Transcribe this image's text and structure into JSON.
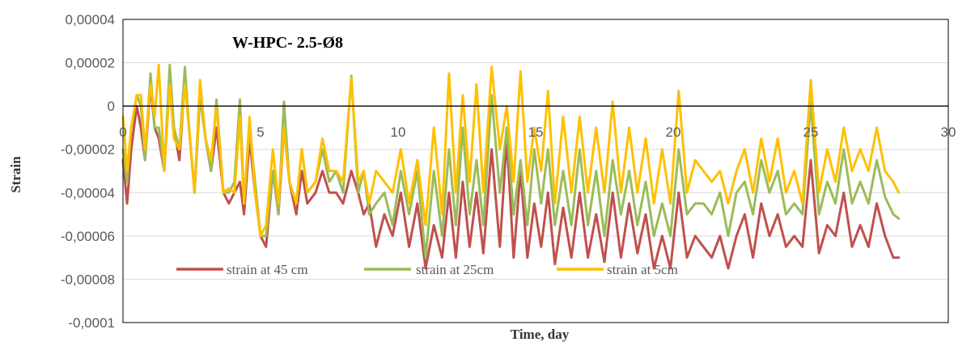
{
  "chart_data": {
    "type": "line",
    "title": "W-HPC- 2.5-Ø8",
    "xlabel": "Time, day",
    "ylabel": "Strain",
    "xlim": [
      0,
      30
    ],
    "ylim": [
      -0.0001,
      4e-05
    ],
    "x_ticks": [
      0,
      5,
      10,
      15,
      20,
      25,
      30
    ],
    "x_tick_labels": [
      "0",
      "5",
      "10",
      "15",
      "20",
      "25",
      "30"
    ],
    "y_ticks": [
      4e-05,
      2e-05,
      0,
      -2e-05,
      -4e-05,
      -6e-05,
      -8e-05,
      -0.0001
    ],
    "y_tick_labels": [
      "0,00004",
      "0,00002",
      "0",
      "-0,00002",
      "-0,00004",
      "-0,00006",
      "-0,00008",
      "-0,0001"
    ],
    "grid": "horizontal",
    "legend": "bottom",
    "series": [
      {
        "name": "strain at 45 cm",
        "color": "#C0504D",
        "x": [
          0,
          0.15,
          0.3,
          0.5,
          0.65,
          0.8,
          1.0,
          1.15,
          1.3,
          1.5,
          1.7,
          1.85,
          2.05,
          2.25,
          2.4,
          2.6,
          2.8,
          3.0,
          3.2,
          3.4,
          3.65,
          3.85,
          4.05,
          4.25,
          4.4,
          4.6,
          4.8,
          5.0,
          5.2,
          5.45,
          5.65,
          5.85,
          6.05,
          6.3,
          6.5,
          6.7,
          7.0,
          7.25,
          7.5,
          7.75,
          8.0,
          8.3,
          8.55,
          8.75,
          8.95,
          9.2,
          9.5,
          9.8,
          10.1,
          10.4,
          10.7,
          11.0,
          11.3,
          11.6,
          11.85,
          12.1,
          12.35,
          12.6,
          12.85,
          13.1,
          13.4,
          13.7,
          13.95,
          14.2,
          14.45,
          14.7,
          14.95,
          15.2,
          15.45,
          15.7,
          16.0,
          16.3,
          16.6,
          16.9,
          17.2,
          17.5,
          17.8,
          18.1,
          18.4,
          18.7,
          19.0,
          19.3,
          19.6,
          19.9,
          20.2,
          20.5,
          20.8,
          21.1,
          21.4,
          21.7,
          22.0,
          22.3,
          22.6,
          22.9,
          23.2,
          23.5,
          23.8,
          24.1,
          24.4,
          24.7,
          25.0,
          25.3,
          25.6,
          25.9,
          26.2,
          26.5,
          26.8,
          27.1,
          27.4,
          27.7,
          28.0,
          28.2
        ],
        "y": [
          -2.5e-05,
          -4.5e-05,
          -2e-05,
          0,
          -1e-05,
          -2.5e-05,
          1e-05,
          -1e-05,
          -1.5e-05,
          -3e-05,
          1.5e-05,
          -1e-05,
          -2.5e-05,
          1.2e-05,
          -1e-05,
          -4e-05,
          5e-06,
          -1.5e-05,
          -3e-05,
          -1e-05,
          -4e-05,
          -4.5e-05,
          -4e-05,
          -3.5e-05,
          -5e-05,
          -1.5e-05,
          -4e-05,
          -6e-05,
          -6.5e-05,
          -3e-05,
          -5e-05,
          -1e-05,
          -3.5e-05,
          -5e-05,
          -3e-05,
          -4.5e-05,
          -4e-05,
          -3e-05,
          -4e-05,
          -4e-05,
          -4.5e-05,
          -3e-05,
          -4e-05,
          -5e-05,
          -4.5e-05,
          -6.5e-05,
          -5e-05,
          -6e-05,
          -4e-05,
          -6.5e-05,
          -4.5e-05,
          -7.5e-05,
          -5.5e-05,
          -7e-05,
          -4e-05,
          -7e-05,
          -3.5e-05,
          -6.5e-05,
          -4e-05,
          -6.8e-05,
          -2e-05,
          -6.5e-05,
          -1.5e-05,
          -7e-05,
          -3e-05,
          -7e-05,
          -4.5e-05,
          -6.5e-05,
          -4e-05,
          -7.3e-05,
          -4.7e-05,
          -7e-05,
          -4e-05,
          -7e-05,
          -5e-05,
          -7.2e-05,
          -4e-05,
          -7e-05,
          -4.5e-05,
          -6.8e-05,
          -5e-05,
          -7.5e-05,
          -6e-05,
          -7.5e-05,
          -4e-05,
          -7e-05,
          -6e-05,
          -6.5e-05,
          -7e-05,
          -6e-05,
          -7.5e-05,
          -6e-05,
          -5e-05,
          -7e-05,
          -4.5e-05,
          -6e-05,
          -5e-05,
          -6.5e-05,
          -6e-05,
          -6.5e-05,
          -2.5e-05,
          -6.8e-05,
          -5.5e-05,
          -6e-05,
          -4e-05,
          -6.5e-05,
          -5.5e-05,
          -6.5e-05,
          -4.5e-05,
          -6e-05,
          -7e-05,
          -7e-05
        ]
      },
      {
        "name": "strain at 25cm",
        "color": "#9BBB59",
        "x": [
          0,
          0.15,
          0.3,
          0.5,
          0.65,
          0.8,
          1.0,
          1.15,
          1.3,
          1.5,
          1.7,
          1.85,
          2.05,
          2.25,
          2.4,
          2.6,
          2.8,
          3.0,
          3.2,
          3.4,
          3.65,
          3.85,
          4.05,
          4.25,
          4.4,
          4.6,
          4.8,
          5.0,
          5.2,
          5.45,
          5.65,
          5.85,
          6.05,
          6.3,
          6.5,
          6.7,
          7.0,
          7.25,
          7.5,
          7.75,
          8.0,
          8.3,
          8.55,
          8.75,
          8.95,
          9.2,
          9.5,
          9.8,
          10.1,
          10.4,
          10.7,
          11.0,
          11.3,
          11.6,
          11.85,
          12.1,
          12.35,
          12.6,
          12.85,
          13.1,
          13.4,
          13.7,
          13.95,
          14.2,
          14.45,
          14.7,
          14.95,
          15.2,
          15.45,
          15.7,
          16.0,
          16.3,
          16.6,
          16.9,
          17.2,
          17.5,
          17.8,
          18.1,
          18.4,
          18.7,
          19.0,
          19.3,
          19.6,
          19.9,
          20.2,
          20.5,
          20.8,
          21.1,
          21.4,
          21.7,
          22.0,
          22.3,
          22.6,
          22.9,
          23.2,
          23.5,
          23.8,
          24.1,
          24.4,
          24.7,
          25.0,
          25.3,
          25.6,
          25.9,
          26.2,
          26.5,
          26.8,
          27.1,
          27.4,
          27.7,
          28.0,
          28.2
        ],
        "y": [
          -2e-05,
          -3.5e-05,
          -1e-05,
          5e-06,
          0,
          -2.5e-05,
          1.5e-05,
          -1e-05,
          -1e-05,
          -3e-05,
          1.9e-05,
          -1e-05,
          -2e-05,
          1.8e-05,
          -1e-05,
          -4e-05,
          5e-06,
          -1.5e-05,
          -3e-05,
          3e-06,
          -4e-05,
          -4e-05,
          -3.5e-05,
          3e-06,
          -4.5e-05,
          -1e-05,
          -3.5e-05,
          -6e-05,
          -6e-05,
          -3e-05,
          -5e-05,
          2e-06,
          -3.5e-05,
          -4.5e-05,
          -2e-05,
          -4e-05,
          -3.5e-05,
          -2e-05,
          -3.5e-05,
          -3e-05,
          -4e-05,
          1.4e-05,
          -4e-05,
          -3e-05,
          -5e-05,
          -4.5e-05,
          -4e-05,
          -5.5e-05,
          -3e-05,
          -5e-05,
          -3e-05,
          -7e-05,
          -3e-05,
          -6e-05,
          -2e-05,
          -5.5e-05,
          -1e-05,
          -5e-05,
          -2.5e-05,
          -5.5e-05,
          5e-06,
          -4e-05,
          -1e-05,
          -5e-05,
          -2.5e-05,
          -5.5e-05,
          -2e-05,
          -4.5e-05,
          -2e-05,
          -5.5e-05,
          -3e-05,
          -5.5e-05,
          -2e-05,
          -5.5e-05,
          -3e-05,
          -6e-05,
          -2.5e-05,
          -5e-05,
          -3e-05,
          -5.5e-05,
          -3.5e-05,
          -6e-05,
          -4.5e-05,
          -6e-05,
          -2e-05,
          -5e-05,
          -4.5e-05,
          -4.5e-05,
          -5e-05,
          -4e-05,
          -6e-05,
          -4e-05,
          -3.5e-05,
          -5e-05,
          -2.5e-05,
          -4e-05,
          -3e-05,
          -5e-05,
          -4.5e-05,
          -5e-05,
          2e-06,
          -5e-05,
          -3.5e-05,
          -4.5e-05,
          -2e-05,
          -4.5e-05,
          -3.5e-05,
          -4.5e-05,
          -2.5e-05,
          -4.2e-05,
          -5e-05,
          -5.2e-05
        ]
      },
      {
        "name": "strain at 5cm",
        "color": "#FFC000",
        "x": [
          0,
          0.15,
          0.3,
          0.5,
          0.65,
          0.8,
          1.0,
          1.15,
          1.3,
          1.5,
          1.7,
          1.85,
          2.05,
          2.25,
          2.4,
          2.6,
          2.8,
          3.0,
          3.2,
          3.4,
          3.65,
          3.85,
          4.05,
          4.25,
          4.4,
          4.6,
          4.8,
          5.0,
          5.2,
          5.45,
          5.65,
          5.85,
          6.05,
          6.3,
          6.5,
          6.7,
          7.0,
          7.25,
          7.5,
          7.75,
          8.0,
          8.3,
          8.55,
          8.75,
          8.95,
          9.2,
          9.5,
          9.8,
          10.1,
          10.4,
          10.7,
          11.0,
          11.3,
          11.6,
          11.85,
          12.1,
          12.35,
          12.6,
          12.85,
          13.1,
          13.4,
          13.7,
          13.95,
          14.2,
          14.45,
          14.7,
          14.95,
          15.2,
          15.45,
          15.7,
          16.0,
          16.3,
          16.6,
          16.9,
          17.2,
          17.5,
          17.8,
          18.1,
          18.4,
          18.7,
          19.0,
          19.3,
          19.6,
          19.9,
          20.2,
          20.5,
          20.8,
          21.1,
          21.4,
          21.7,
          22.0,
          22.3,
          22.6,
          22.9,
          23.2,
          23.5,
          23.8,
          24.1,
          24.4,
          24.7,
          25.0,
          25.3,
          25.6,
          25.9,
          26.2,
          26.5,
          26.8,
          27.1,
          27.4,
          27.7,
          28.0,
          28.2
        ],
        "y": [
          -5e-06,
          -3e-05,
          -1e-05,
          5e-06,
          5e-06,
          -2e-05,
          1e-05,
          -5e-06,
          1.9e-05,
          -3e-05,
          1e-05,
          -1.5e-05,
          -2e-05,
          1e-05,
          -1e-05,
          -4e-05,
          1.2e-05,
          -1.5e-05,
          -2.5e-05,
          0,
          -4e-05,
          -3.8e-05,
          -4e-05,
          -5e-06,
          -4.5e-05,
          -5e-06,
          -4e-05,
          -6e-05,
          -5.5e-05,
          -2e-05,
          -4.5e-05,
          -1e-05,
          -3.5e-05,
          -4.5e-05,
          -2e-05,
          -4e-05,
          -3.5e-05,
          -1.5e-05,
          -3e-05,
          -3e-05,
          -3.5e-05,
          1.3e-05,
          -3.5e-05,
          -3e-05,
          -4.5e-05,
          -3e-05,
          -3.5e-05,
          -4e-05,
          -2e-05,
          -4.5e-05,
          -2.5e-05,
          -5.5e-05,
          -1e-05,
          -5e-05,
          1.5e-05,
          -4e-05,
          5e-06,
          -3.5e-05,
          1e-05,
          -4e-05,
          1.8e-05,
          -2e-05,
          0,
          -3.5e-05,
          1.6e-05,
          -3.5e-05,
          -1e-05,
          -3e-05,
          7e-06,
          -4.5e-05,
          -5e-06,
          -4e-05,
          -5e-06,
          -4e-05,
          -1e-05,
          -4e-05,
          2e-06,
          -4e-05,
          -1e-05,
          -4e-05,
          -1.5e-05,
          -4.5e-05,
          -2e-05,
          -4.5e-05,
          7e-06,
          -4e-05,
          -2.5e-05,
          -3e-05,
          -3.5e-05,
          -3e-05,
          -4.5e-05,
          -3e-05,
          -2e-05,
          -4e-05,
          -1.5e-05,
          -3.5e-05,
          -1.5e-05,
          -4e-05,
          -3e-05,
          -4.5e-05,
          1.2e-05,
          -4e-05,
          -2e-05,
          -3.5e-05,
          -1e-05,
          -3e-05,
          -2e-05,
          -3e-05,
          -1e-05,
          -3e-05,
          -3.5e-05,
          -4e-05
        ]
      }
    ]
  }
}
